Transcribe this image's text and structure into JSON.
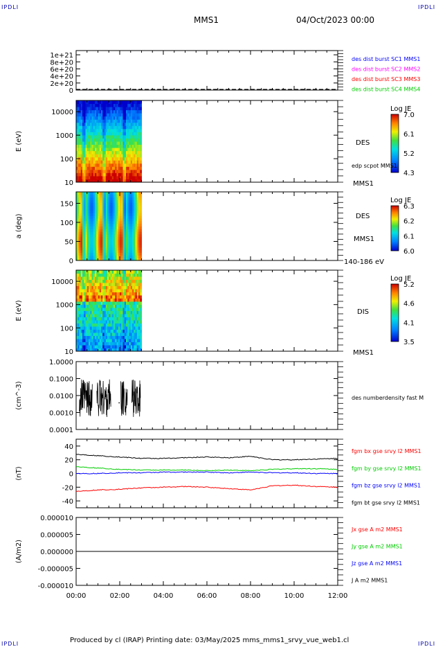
{
  "header": {
    "corner_tl": "IPDLI",
    "corner_tr": "IPDLI",
    "corner_bl": "IPDLI",
    "corner_br": "IPDLI",
    "spacecraft": "MMS1",
    "datetime": "04/Oct/2023 00:00"
  },
  "footer": {
    "text": "Produced by cl (IRAP)   Printing date: 03/May/2025   mms_mms1_srvy_vue_web1.cl"
  },
  "colors": {
    "series_blue": "#0000ff",
    "series_magenta": "#ff00ff",
    "series_red": "#ff0000",
    "series_green": "#00cc00",
    "series_black": "#000000"
  },
  "chart_data": [
    {
      "id": "p1",
      "type": "line",
      "y_ticks": [
        "1e+21",
        "8e+20",
        "6e+20",
        "4e+20",
        "2e+20",
        "0"
      ],
      "y_tick_values": [
        1e+21,
        8e+20,
        6e+20,
        4e+20,
        2e+20,
        0
      ],
      "ylim": [
        0,
        1.12e+21
      ],
      "x_range_hours": [
        0,
        12
      ],
      "labels": [
        {
          "text": "des dist burst SC1 MMS1",
          "color": "#0000ff"
        },
        {
          "text": "des dist burst SC2 MMS2",
          "color": "#ff00ff"
        },
        {
          "text": "des dist burst SC3 MMS3",
          "color": "#ff0000"
        },
        {
          "text": "des dist burst SC4 MMS4",
          "color": "#00cc00"
        }
      ],
      "dashed_level": 0
    },
    {
      "id": "p2",
      "type": "heatmap",
      "ylabel": "E (eV)",
      "y_scale": "log",
      "ylim": [
        10,
        30000
      ],
      "y_ticks": [
        "10000",
        "1000",
        "100",
        "10"
      ],
      "y_tick_values": [
        10000,
        1000,
        100,
        10
      ],
      "data_until_hours": 3.0,
      "side_labels": [
        "DES",
        "edp scpot MMS1",
        "MMS1"
      ],
      "colorbar": {
        "title": "Log JE",
        "ticks": [
          "7.0",
          "6.1",
          "5.2",
          "4.3"
        ],
        "range": [
          4.3,
          7.0
        ]
      }
    },
    {
      "id": "p3",
      "type": "heatmap",
      "ylabel": "a (deg)",
      "ylim": [
        0,
        180
      ],
      "y_ticks": [
        "150",
        "100",
        "50",
        "0"
      ],
      "y_tick_values": [
        150,
        100,
        50,
        0
      ],
      "data_until_hours": 3.0,
      "side_labels": [
        "DES",
        "MMS1",
        "140-186 eV"
      ],
      "colorbar": {
        "title": "Log JE",
        "ticks": [
          "6.3",
          "6.2",
          "6.1",
          "6.0"
        ],
        "range": [
          6.0,
          6.3
        ]
      }
    },
    {
      "id": "p4",
      "type": "heatmap",
      "ylabel": "E (eV)",
      "y_scale": "log",
      "ylim": [
        10,
        30000
      ],
      "y_ticks": [
        "10000",
        "1000",
        "100",
        "10"
      ],
      "y_tick_values": [
        10000,
        1000,
        100,
        10
      ],
      "data_until_hours": 3.0,
      "side_labels": [
        "DIS",
        "MMS1"
      ],
      "colorbar": {
        "title": "Log JE",
        "ticks": [
          "5.2",
          "4.6",
          "4.1",
          "3.5"
        ],
        "range": [
          3.5,
          5.2
        ]
      }
    },
    {
      "id": "p5",
      "type": "line",
      "ylabel": "(cm^-3)",
      "y_scale": "log",
      "ylim": [
        0.0001,
        1.0
      ],
      "y_ticks": [
        "1.0000",
        "0.1000",
        "0.0100",
        "0.0010",
        "0.0001"
      ],
      "y_tick_values": [
        1.0,
        0.1,
        0.01,
        0.001,
        0.0001
      ],
      "labels": [
        {
          "text": "des numberdensity fast M",
          "color": "#000000"
        }
      ],
      "segments_hours": [
        [
          0.15,
          0.75
        ],
        [
          0.95,
          1.6
        ],
        [
          2.05,
          2.35
        ],
        [
          2.55,
          2.95
        ]
      ],
      "value_range": [
        0.0005,
        0.1
      ]
    },
    {
      "id": "p6",
      "type": "line",
      "ylabel": "(nT)",
      "ylim": [
        -50,
        50
      ],
      "y_ticks": [
        "40",
        "20",
        "0",
        "-20",
        "-40"
      ],
      "y_tick_values": [
        40,
        20,
        0,
        -20,
        -40
      ],
      "x": [
        0,
        1,
        2,
        3,
        4,
        5,
        6,
        7,
        8,
        9,
        10,
        11,
        12
      ],
      "series": [
        {
          "name": "fgm bx gse srvy l2 MMS1",
          "color": "#ff0000",
          "values": [
            -26,
            -24,
            -23,
            -21,
            -20,
            -19,
            -20,
            -22,
            -24,
            -18,
            -17,
            -19,
            -20
          ]
        },
        {
          "name": "fgm by gse srvy l2 MMS1",
          "color": "#00cc00",
          "values": [
            10,
            8,
            6,
            5,
            5,
            5,
            4,
            5,
            4,
            6,
            7,
            7,
            6
          ]
        },
        {
          "name": "fgm bz gse srvy l2 MMS1",
          "color": "#0000ff",
          "values": [
            0,
            0,
            1,
            1,
            2,
            2,
            2,
            1,
            2,
            1,
            1,
            0,
            0
          ]
        },
        {
          "name": "fgm bt gse srvy l2 MMS1",
          "color": "#000000",
          "values": [
            28,
            26,
            24,
            22,
            22,
            23,
            24,
            23,
            25,
            20,
            20,
            21,
            22
          ]
        }
      ]
    },
    {
      "id": "p7",
      "type": "line",
      "ylabel": "(A/m2)",
      "ylim": [
        -1e-05,
        1e-05
      ],
      "y_ticks": [
        "0.000010",
        "0.000005",
        "0.000000",
        "-0.000005",
        "-0.000010"
      ],
      "y_tick_values": [
        1e-05,
        5e-06,
        0,
        -5e-06,
        -1e-05
      ],
      "x_ticks": [
        "00:00",
        "02:00",
        "04:00",
        "06:00",
        "08:00",
        "10:00",
        "12:00"
      ],
      "x_tick_values": [
        0,
        2,
        4,
        6,
        8,
        10,
        12
      ],
      "series": [
        {
          "name": "Jx gse A m2 MMS1",
          "color": "#ff0000",
          "values": [
            0,
            0,
            0,
            0,
            0,
            0,
            0,
            0,
            0,
            0,
            0,
            0,
            0
          ]
        },
        {
          "name": "Jy gse A m2 MMS1",
          "color": "#00cc00",
          "values": [
            0,
            0,
            0,
            0,
            0,
            0,
            0,
            0,
            0,
            0,
            0,
            0,
            0
          ]
        },
        {
          "name": "Jz gse A m2 MMS1",
          "color": "#0000ff",
          "values": [
            0,
            0,
            0,
            0,
            0,
            0,
            0,
            0,
            0,
            0,
            0,
            0,
            0
          ]
        },
        {
          "name": "J A m2 MMS1",
          "color": "#000000",
          "values": [
            0,
            0,
            0,
            0,
            0,
            0,
            0,
            0,
            0,
            0,
            0,
            0,
            0
          ]
        }
      ]
    }
  ]
}
